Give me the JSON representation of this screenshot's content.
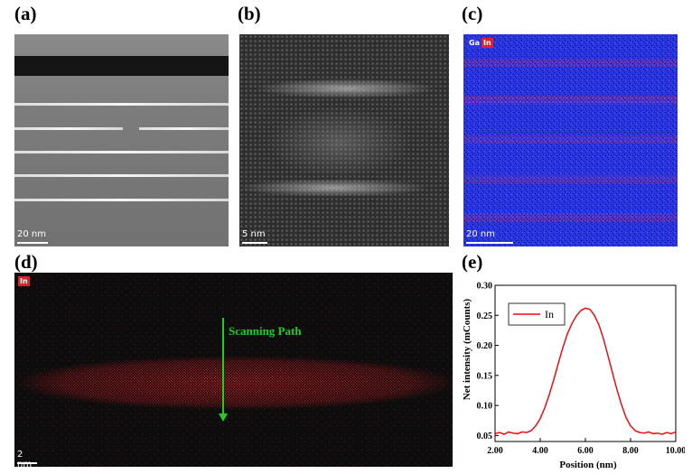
{
  "panels": {
    "a": {
      "label": "(a)",
      "scale": "20 nm"
    },
    "b": {
      "label": "(b)",
      "scale": "5 nm"
    },
    "c": {
      "label": "(c)",
      "scale": "20 nm",
      "tags": [
        "Ga",
        "In"
      ]
    },
    "d": {
      "label": "(d)",
      "scale": "2 nm",
      "tag": "In",
      "annotation": "Scanning Path"
    },
    "e": {
      "label": "(e)"
    }
  },
  "colors": {
    "ga": "#2a36e6",
    "in": "#e0202a",
    "arrow": "#22cc22",
    "line": "#e81010"
  },
  "chart_data": {
    "type": "line",
    "xlabel": "Position (nm)",
    "ylabel": "Net intensity (mCounts)",
    "xlim": [
      2.0,
      10.0
    ],
    "ylim": [
      0.04,
      0.3
    ],
    "xticks": [
      "2.00",
      "4.00",
      "6.00",
      "8.00",
      "10.00"
    ],
    "yticks": [
      "0.05",
      "0.10",
      "0.15",
      "0.20",
      "0.25",
      "0.30"
    ],
    "legend_position": "top-left",
    "series": [
      {
        "name": "In",
        "x": [
          2.0,
          2.2,
          2.4,
          2.6,
          2.8,
          3.0,
          3.2,
          3.4,
          3.6,
          3.8,
          4.0,
          4.2,
          4.4,
          4.6,
          4.8,
          5.0,
          5.2,
          5.4,
          5.6,
          5.8,
          6.0,
          6.2,
          6.4,
          6.6,
          6.8,
          7.0,
          7.2,
          7.4,
          7.6,
          7.8,
          8.0,
          8.2,
          8.4,
          8.6,
          8.8,
          9.0,
          9.2,
          9.4,
          9.6,
          9.8,
          10.0
        ],
        "y": [
          0.053,
          0.055,
          0.052,
          0.056,
          0.054,
          0.053,
          0.056,
          0.055,
          0.058,
          0.066,
          0.078,
          0.096,
          0.118,
          0.143,
          0.17,
          0.196,
          0.219,
          0.236,
          0.249,
          0.258,
          0.262,
          0.26,
          0.25,
          0.234,
          0.211,
          0.183,
          0.154,
          0.126,
          0.101,
          0.08,
          0.066,
          0.058,
          0.055,
          0.054,
          0.056,
          0.053,
          0.054,
          0.052,
          0.055,
          0.053,
          0.056
        ]
      }
    ]
  }
}
